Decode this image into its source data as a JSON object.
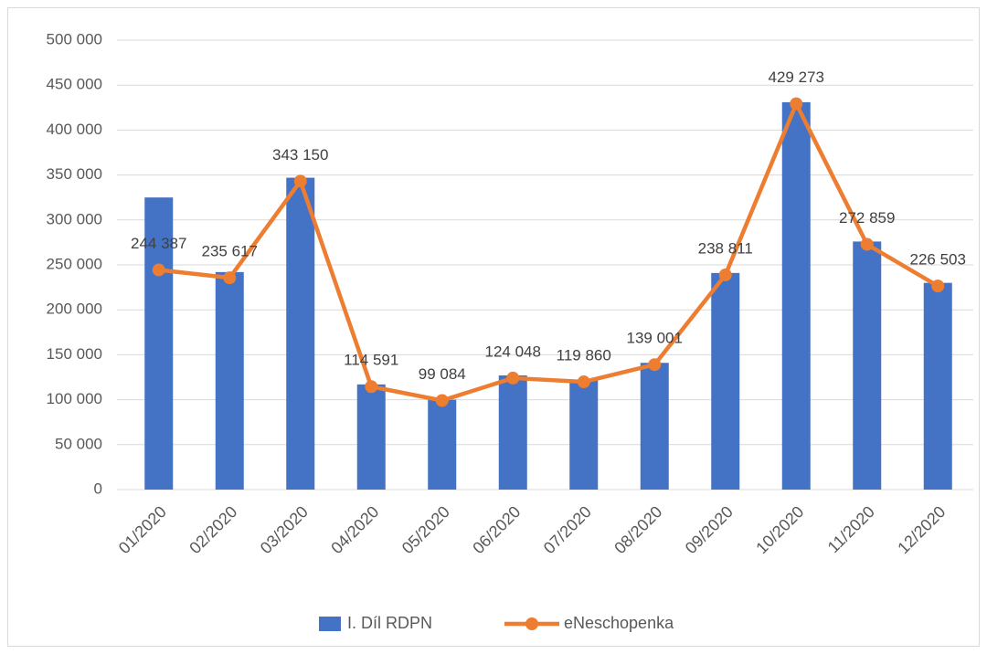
{
  "chart_data": {
    "type": "combo",
    "categories": [
      "01/2020",
      "02/2020",
      "03/2020",
      "04/2020",
      "05/2020",
      "06/2020",
      "07/2020",
      "08/2020",
      "09/2020",
      "10/2020",
      "11/2020",
      "12/2020"
    ],
    "series": [
      {
        "name": "I. Díl RDPN",
        "type": "bar",
        "color": "#4472c4",
        "values": [
          325000,
          242000,
          347000,
          117000,
          100000,
          127000,
          122000,
          141000,
          241000,
          431000,
          276000,
          230000
        ]
      },
      {
        "name": "eNeschopenka",
        "type": "line",
        "color": "#ed7d31",
        "values": [
          244387,
          235617,
          343150,
          114591,
          99084,
          124048,
          119860,
          139001,
          238811,
          429273,
          272859,
          226503
        ],
        "value_labels": [
          "244 387",
          "235 617",
          "343 150",
          "114 591",
          "99 084",
          "124 048",
          "119 860",
          "139 001",
          "238 811",
          "429 273",
          "272 859",
          "226 503"
        ]
      }
    ],
    "ylim": [
      0,
      500000
    ],
    "yticks": [
      0,
      {
        "value": 50000,
        "label": "50 000"
      },
      {
        "value": 100000,
        "label": "100 000"
      },
      {
        "value": 150000,
        "label": "150 000"
      },
      {
        "value": 200000,
        "label": "200 000"
      },
      {
        "value": 250000,
        "label": "250 000"
      },
      {
        "value": 300000,
        "label": "300 000"
      },
      {
        "value": 350000,
        "label": "350 000"
      },
      {
        "value": 400000,
        "label": "400 000"
      },
      {
        "value": 450000,
        "label": "450 000"
      },
      {
        "value": 500000,
        "label": "500 000"
      }
    ],
    "grid": true,
    "legend": "bottom"
  }
}
